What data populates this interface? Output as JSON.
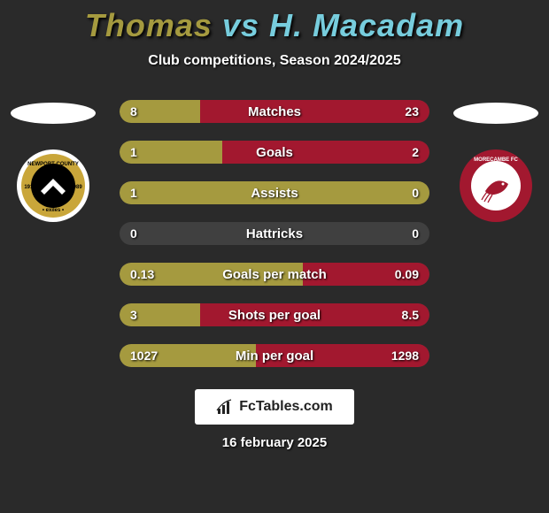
{
  "title": {
    "player1": "Thomas",
    "vs": "vs",
    "player2": "H. Macadam",
    "player1_color": "#a59a3f",
    "vs_color": "#77cddd",
    "player2_color": "#77cddd",
    "fontsize": 36
  },
  "subtitle": "Club competitions, Season 2024/2025",
  "background_color": "#2a2a2a",
  "side_ellipse_fill": "#ffffff",
  "crest_left": {
    "outer_ring": "#ffffff",
    "ring": "#c9a63a",
    "inner": "#000000",
    "chevron": "#ffffff",
    "label_top": "NEWPORT COUNTY AFC",
    "label_bottom": "exiles"
  },
  "crest_right": {
    "ring": "#a2182f",
    "inner": "#ffffff",
    "label": "MORECAMBE FC"
  },
  "bars": {
    "track_color": "#404040",
    "left_color": "#a59a3f",
    "right_color": "#a2182f",
    "rows": [
      {
        "label": "Matches",
        "left_text": "8",
        "right_text": "23",
        "left_pct": 26,
        "right_pct": 74
      },
      {
        "label": "Goals",
        "left_text": "1",
        "right_text": "2",
        "left_pct": 33,
        "right_pct": 67
      },
      {
        "label": "Assists",
        "left_text": "1",
        "right_text": "0",
        "left_pct": 100,
        "right_pct": 0
      },
      {
        "label": "Hattricks",
        "left_text": "0",
        "right_text": "0",
        "left_pct": 0,
        "right_pct": 0
      },
      {
        "label": "Goals per match",
        "left_text": "0.13",
        "right_text": "0.09",
        "left_pct": 59,
        "right_pct": 41
      },
      {
        "label": "Shots per goal",
        "left_text": "3",
        "right_text": "8.5",
        "left_pct": 26,
        "right_pct": 74
      },
      {
        "label": "Min per goal",
        "left_text": "1027",
        "right_text": "1298",
        "left_pct": 44,
        "right_pct": 56
      }
    ]
  },
  "logo_text": "FcTables.com",
  "date": "16 february 2025"
}
